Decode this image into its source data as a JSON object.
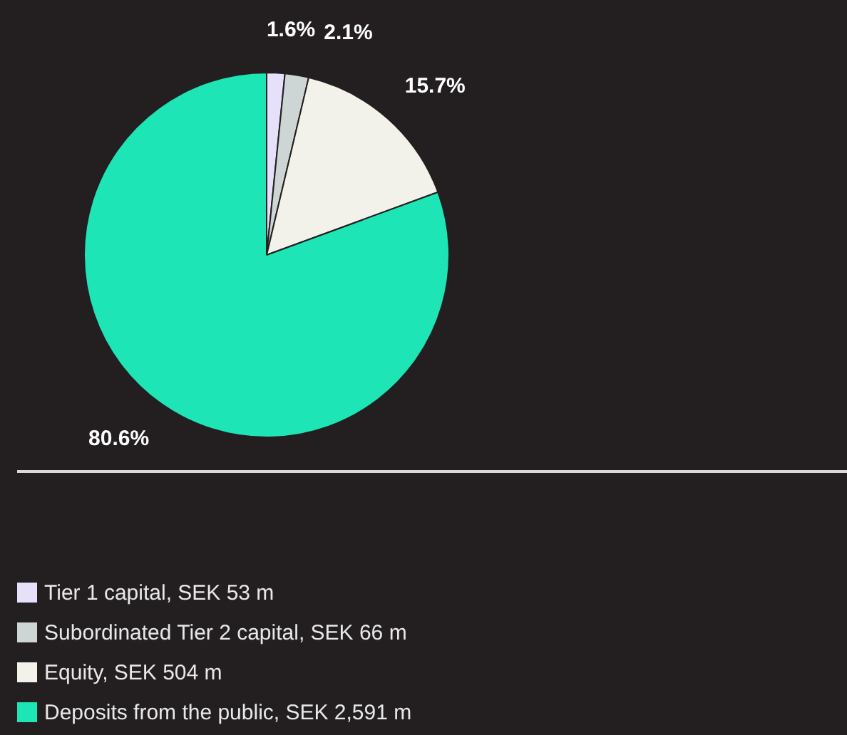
{
  "chart_data": {
    "type": "pie",
    "categories": [
      "Tier 1 capital, SEK 53 m",
      "Subordinated Tier 2 capital, SEK 66 m",
      "Equity, SEK 504 m",
      "Deposits from the public, SEK 2,591 m"
    ],
    "values": [
      1.6,
      2.1,
      15.7,
      80.6
    ],
    "colors": [
      "#e6e0fb",
      "#cdd6d4",
      "#f3f2ea",
      "#1de5b5"
    ],
    "value_labels": [
      "1.6%",
      "2.1%",
      "15.7%",
      "80.6%"
    ],
    "legend": "bottom"
  }
}
